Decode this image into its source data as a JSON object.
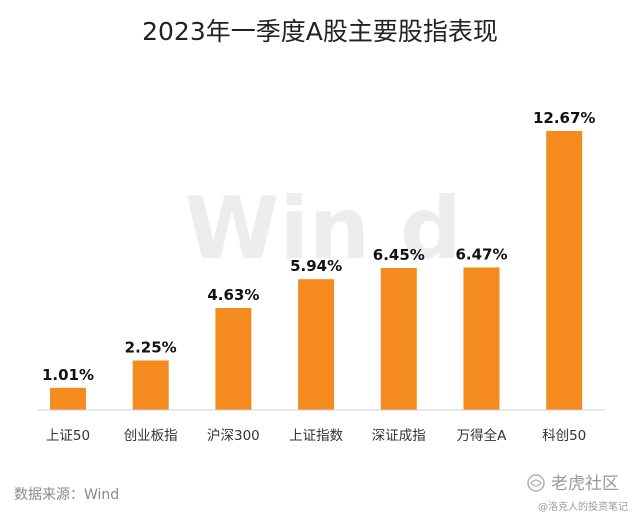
{
  "chart_data": {
    "type": "bar",
    "title": "2023年一季度A股主要股指表现",
    "categories": [
      "上证50",
      "创业板指",
      "沪深300",
      "上证指数",
      "深证成指",
      "万得全A",
      "科创50"
    ],
    "values": [
      1.01,
      2.25,
      4.63,
      5.94,
      6.45,
      6.47,
      12.67
    ],
    "value_labels": [
      "1.01%",
      "2.25%",
      "4.63%",
      "5.94%",
      "6.45%",
      "6.47%",
      "12.67%"
    ],
    "xlabel": "",
    "ylabel": "",
    "ylim": [
      0,
      12.67
    ],
    "grid": false,
    "legend": "none",
    "bar_color": "#f58a1f",
    "source": "数据来源：Wind"
  },
  "watermark": {
    "text": "Win d"
  },
  "branding": {
    "name": "老虎社区",
    "handle": "@洛克人的投资笔记",
    "icon": "tiger-logo-icon"
  }
}
